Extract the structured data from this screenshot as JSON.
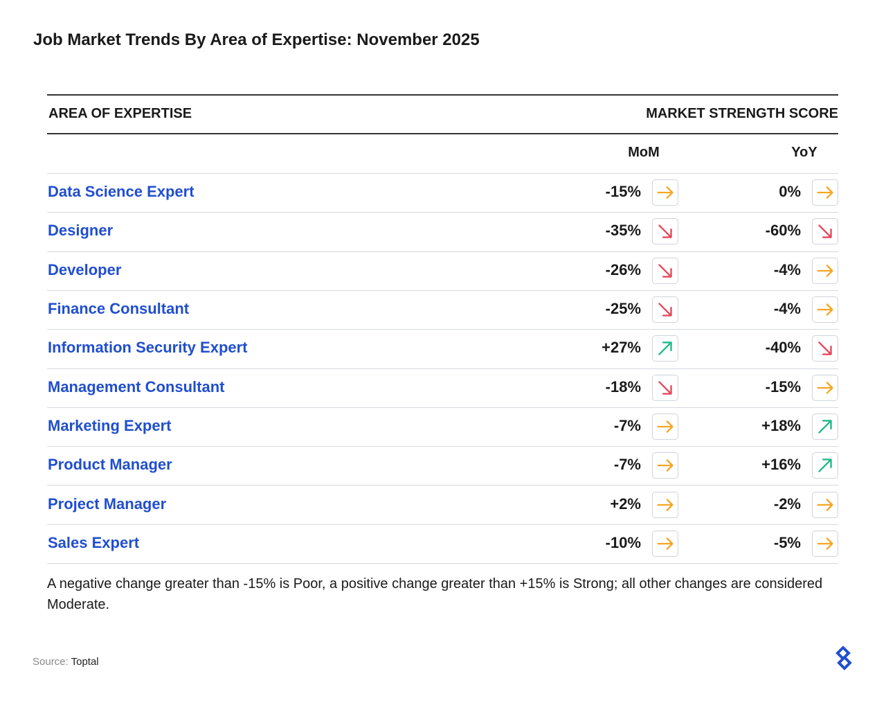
{
  "header": {
    "title": "Job Market Trends By Area of Expertise: November 2025"
  },
  "table": {
    "columns": {
      "area": "AREA OF EXPERTISE",
      "score": "MARKET STRENGTH SCORE",
      "mom": "MoM",
      "yoy": "YoY"
    },
    "rows": [
      {
        "area": "Data Science Expert",
        "mom": "-15%",
        "mom_trend": "flat",
        "yoy": "0%",
        "yoy_trend": "flat"
      },
      {
        "area": "Designer",
        "mom": "-35%",
        "mom_trend": "down",
        "yoy": "-60%",
        "yoy_trend": "down"
      },
      {
        "area": "Developer",
        "mom": "-26%",
        "mom_trend": "down",
        "yoy": "-4%",
        "yoy_trend": "flat"
      },
      {
        "area": "Finance Consultant",
        "mom": "-25%",
        "mom_trend": "down",
        "yoy": "-4%",
        "yoy_trend": "flat"
      },
      {
        "area": "Information Security Expert",
        "mom": "+27%",
        "mom_trend": "up",
        "yoy": "-40%",
        "yoy_trend": "down"
      },
      {
        "area": "Management Consultant",
        "mom": "-18%",
        "mom_trend": "down",
        "yoy": "-15%",
        "yoy_trend": "flat"
      },
      {
        "area": "Marketing Expert",
        "mom": "-7%",
        "mom_trend": "flat",
        "yoy": "+18%",
        "yoy_trend": "up"
      },
      {
        "area": "Product Manager",
        "mom": "-7%",
        "mom_trend": "flat",
        "yoy": "+16%",
        "yoy_trend": "up"
      },
      {
        "area": "Project Manager",
        "mom": "+2%",
        "mom_trend": "flat",
        "yoy": "-2%",
        "yoy_trend": "flat"
      },
      {
        "area": "Sales Expert",
        "mom": "-10%",
        "mom_trend": "flat",
        "yoy": "-5%",
        "yoy_trend": "flat"
      }
    ]
  },
  "footnote": "A negative change greater than -15% is Poor, a positive change greater than +15% is Strong; all other changes are considered Moderate.",
  "source": {
    "label": "Source:",
    "name": "Toptal"
  }
}
